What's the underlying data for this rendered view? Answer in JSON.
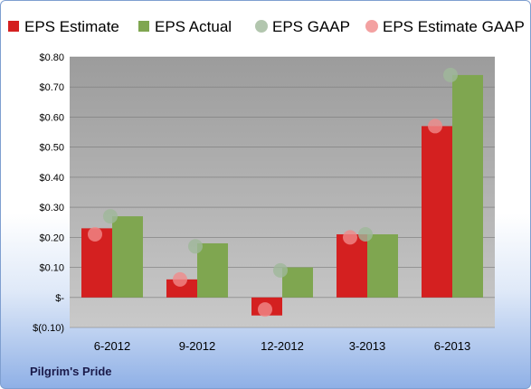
{
  "company": "Pilgrim's Pride",
  "chart_data": {
    "type": "bar",
    "categories": [
      "6-2012",
      "9-2012",
      "12-2012",
      "3-2013",
      "6-2013"
    ],
    "series": [
      {
        "name": "EPS Estimate",
        "kind": "bar",
        "color": "#d42020",
        "values": [
          0.23,
          0.06,
          -0.06,
          0.21,
          0.57
        ]
      },
      {
        "name": "EPS Actual",
        "kind": "bar",
        "color": "#7fa650",
        "values": [
          0.27,
          0.18,
          0.1,
          0.21,
          0.74
        ]
      },
      {
        "name": "EPS GAAP",
        "kind": "point",
        "color": "#9fb89a",
        "values": [
          0.27,
          0.17,
          0.09,
          0.21,
          0.74
        ]
      },
      {
        "name": "EPS Estimate GAAP",
        "kind": "point",
        "color": "#f08a8a",
        "values": [
          0.21,
          0.06,
          -0.04,
          0.2,
          0.57
        ]
      }
    ],
    "yticks": [
      {
        "value": 0.8,
        "label": "$0.80"
      },
      {
        "value": 0.7,
        "label": "$0.70"
      },
      {
        "value": 0.6,
        "label": "$0.60"
      },
      {
        "value": 0.5,
        "label": "$0.50"
      },
      {
        "value": 0.4,
        "label": "$0.40"
      },
      {
        "value": 0.3,
        "label": "$0.30"
      },
      {
        "value": 0.2,
        "label": "$0.20"
      },
      {
        "value": 0.1,
        "label": "$0.10"
      },
      {
        "value": 0.0,
        "label": "$-"
      },
      {
        "value": -0.1,
        "label": "$(0.10)"
      }
    ],
    "ylim": [
      -0.1,
      0.8
    ],
    "grid": true,
    "legend_position": "top"
  }
}
